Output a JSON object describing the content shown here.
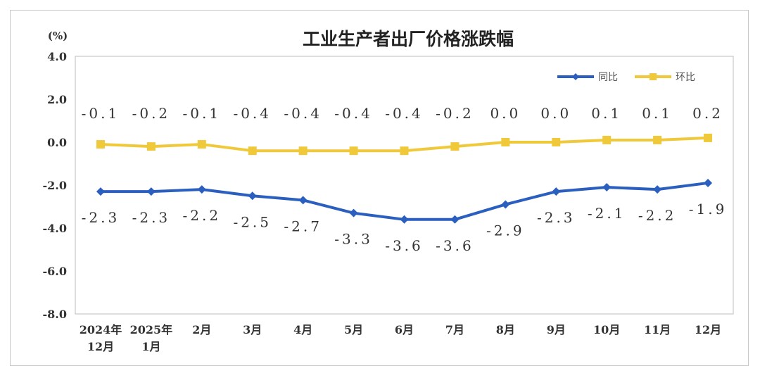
{
  "chart_data": {
    "type": "line",
    "title": "工业生产者出厂价格涨跌幅",
    "ylabel": "(%)",
    "ylim": [
      -8.0,
      4.0
    ],
    "yticks": [
      "4.0",
      "2.0",
      "0.0",
      "-2.0",
      "-4.0",
      "-6.0",
      "-8.0"
    ],
    "ytick_values": [
      4,
      2,
      0,
      -2,
      -4,
      -6,
      -8
    ],
    "grid": false,
    "legend_position": "top-right",
    "categories": [
      [
        "2024年",
        "12月"
      ],
      [
        "2025年",
        "1月"
      ],
      [
        "2月"
      ],
      [
        "3月"
      ],
      [
        "4月"
      ],
      [
        "5月"
      ],
      [
        "6月"
      ],
      [
        "7月"
      ],
      [
        "8月"
      ],
      [
        "9月"
      ],
      [
        "10月"
      ],
      [
        "11月"
      ],
      [
        "12月"
      ]
    ],
    "series": [
      {
        "name": "同比",
        "color": "#2a5fbf",
        "marker": "diamond",
        "values": [
          -2.3,
          -2.3,
          -2.2,
          -2.5,
          -2.7,
          -3.3,
          -3.6,
          -3.6,
          -2.9,
          -2.3,
          -2.1,
          -2.2,
          -1.9
        ],
        "labels": [
          "-2.3",
          "-2.3",
          "-2.2",
          "-2.5",
          "-2.7",
          "-3.3",
          "-3.6",
          "-3.6",
          "-2.9",
          "-2.3",
          "-2.1",
          "-2.2",
          "-1.9"
        ]
      },
      {
        "name": "环比",
        "color": "#f0c93a",
        "marker": "square",
        "values": [
          -0.1,
          -0.2,
          -0.1,
          -0.4,
          -0.4,
          -0.4,
          -0.4,
          -0.2,
          0.0,
          0.0,
          0.1,
          0.1,
          0.2
        ],
        "labels": [
          "-0.1",
          "-0.2",
          "-0.1",
          "-0.4",
          "-0.4",
          "-0.4",
          "-0.4",
          "-0.2",
          "0.0",
          "0.0",
          "0.1",
          "0.1",
          "0.2"
        ]
      }
    ]
  }
}
